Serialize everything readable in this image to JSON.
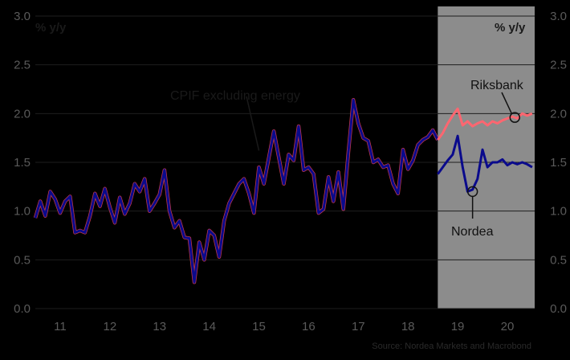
{
  "chart_data": {
    "type": "line",
    "ylabel_left": "% y/y",
    "ylabel_right": "% y/y",
    "ylim": [
      0.0,
      3.0
    ],
    "y_ticks": [
      "0.0",
      "0.5",
      "1.0",
      "1.5",
      "2.0",
      "2.5",
      "3.0"
    ],
    "xlim": [
      2010.5,
      2020.55
    ],
    "x_ticks": [
      {
        "label": "11",
        "x": 2011.0
      },
      {
        "label": "12",
        "x": 2012.0
      },
      {
        "label": "13",
        "x": 2013.0
      },
      {
        "label": "14",
        "x": 2014.0
      },
      {
        "label": "15",
        "x": 2015.0
      },
      {
        "label": "16",
        "x": 2016.0
      },
      {
        "label": "17",
        "x": 2017.0
      },
      {
        "label": "18",
        "x": 2018.0
      },
      {
        "label": "19",
        "x": 2019.0
      },
      {
        "label": "20",
        "x": 2020.0
      }
    ],
    "forecast_shade": {
      "from": 2018.6,
      "to": 2020.55,
      "color": "#8c8c8c"
    },
    "series": [
      {
        "name": "CPIF excluding energy",
        "color": "#c0394b",
        "x": [
          2010.5,
          2010.6,
          2010.7,
          2010.8,
          2010.9,
          2011.0,
          2011.1,
          2011.2,
          2011.3,
          2011.4,
          2011.5,
          2011.6,
          2011.7,
          2011.8,
          2011.9,
          2012.0,
          2012.1,
          2012.2,
          2012.3,
          2012.4,
          2012.5,
          2012.6,
          2012.7,
          2012.8,
          2012.9,
          2013.0,
          2013.1,
          2013.2,
          2013.3,
          2013.4,
          2013.5,
          2013.6,
          2013.7,
          2013.8,
          2013.9,
          2014.0,
          2014.1,
          2014.2,
          2014.3,
          2014.4,
          2014.5,
          2014.6,
          2014.7,
          2014.8,
          2014.9,
          2015.0,
          2015.1,
          2015.2,
          2015.3,
          2015.4,
          2015.5,
          2015.6,
          2015.7,
          2015.8,
          2015.9,
          2016.0,
          2016.1,
          2016.2,
          2016.3,
          2016.4,
          2016.5,
          2016.6,
          2016.7,
          2016.8,
          2016.9,
          2017.0,
          2017.1,
          2017.2,
          2017.3,
          2017.4,
          2017.5,
          2017.6,
          2017.7,
          2017.8,
          2017.9,
          2018.0,
          2018.1,
          2018.2,
          2018.3,
          2018.4,
          2018.5,
          2018.6
        ],
        "values": [
          0.93,
          1.1,
          0.95,
          1.2,
          1.12,
          0.98,
          1.1,
          1.15,
          0.78,
          0.8,
          0.78,
          0.95,
          1.18,
          1.05,
          1.23,
          1.04,
          0.88,
          1.14,
          0.97,
          1.08,
          1.28,
          1.2,
          1.33,
          1.0,
          1.08,
          1.17,
          1.42,
          1.0,
          0.83,
          0.9,
          0.73,
          0.72,
          0.27,
          0.68,
          0.5,
          0.8,
          0.75,
          0.53,
          0.9,
          1.08,
          1.18,
          1.28,
          1.33,
          1.18,
          0.98,
          1.45,
          1.28,
          1.55,
          1.82,
          1.55,
          1.28,
          1.58,
          1.52,
          1.87,
          1.42,
          1.45,
          1.38,
          0.98,
          1.02,
          1.35,
          1.1,
          1.4,
          1.02,
          1.6,
          2.14,
          1.9,
          1.75,
          1.72,
          1.5,
          1.53,
          1.45,
          1.47,
          1.28,
          1.18,
          1.63,
          1.43,
          1.52,
          1.68,
          1.73,
          1.76,
          1.83,
          1.73
        ]
      },
      {
        "name": "Riksbank",
        "color": "#ff6670",
        "x": [
          2018.6,
          2018.7,
          2018.8,
          2018.9,
          2019.0,
          2019.1,
          2019.2,
          2019.3,
          2019.4,
          2019.5,
          2019.6,
          2019.7,
          2019.8,
          2019.9,
          2020.0,
          2020.1,
          2020.2,
          2020.3,
          2020.4,
          2020.5
        ],
        "values": [
          1.73,
          1.8,
          1.9,
          1.98,
          2.05,
          1.88,
          1.92,
          1.87,
          1.9,
          1.92,
          1.88,
          1.92,
          1.9,
          1.93,
          1.95,
          1.97,
          1.95,
          2.0,
          1.98,
          2.0
        ]
      },
      {
        "name": "Nordea",
        "color": "#0a0a8c",
        "x": [
          2018.6,
          2018.7,
          2018.8,
          2018.9,
          2019.0,
          2019.1,
          2019.2,
          2019.3,
          2019.4,
          2019.5,
          2019.6,
          2019.7,
          2019.8,
          2019.9,
          2020.0,
          2020.1,
          2020.2,
          2020.3,
          2020.4,
          2020.5
        ],
        "values": [
          1.38,
          1.45,
          1.52,
          1.58,
          1.77,
          1.45,
          1.2,
          1.22,
          1.33,
          1.63,
          1.45,
          1.5,
          1.5,
          1.53,
          1.47,
          1.5,
          1.48,
          1.5,
          1.48,
          1.45
        ]
      }
    ],
    "annotations": [
      {
        "text": "CPIF excluding energy",
        "color": "#1a1a1a"
      },
      {
        "text": "Riksbank",
        "color": "#111111"
      },
      {
        "text": "Nordea",
        "color": "#111111"
      }
    ],
    "source": "Source: Nordea Markets and Macrobond"
  }
}
